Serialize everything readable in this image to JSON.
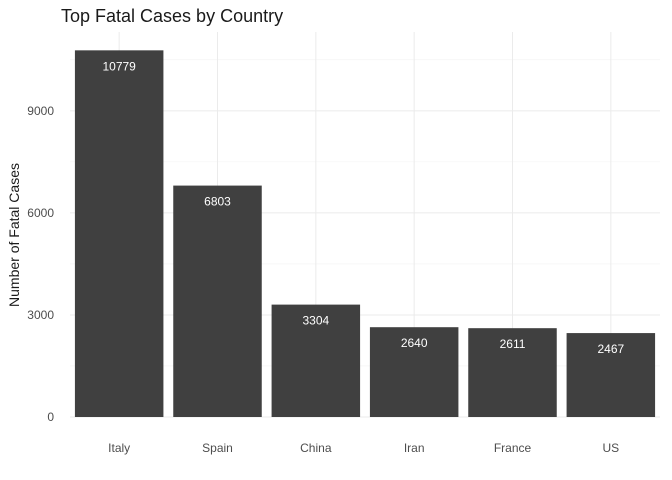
{
  "chart_data": {
    "type": "bar",
    "title": "Top Fatal Cases by Country",
    "xlabel": "",
    "ylabel": "Number of Fatal Cases",
    "categories": [
      "Italy",
      "Spain",
      "China",
      "Iran",
      "France",
      "US"
    ],
    "values": [
      10779,
      6803,
      3304,
      2640,
      2611,
      2467
    ],
    "value_labels": [
      "10779",
      "6803",
      "3304",
      "2640",
      "2611",
      "2467"
    ],
    "y_ticks": [
      0,
      3000,
      6000,
      9000
    ],
    "y_tick_labels": [
      "0",
      "3000",
      "6000",
      "9000"
    ],
    "ylim": [
      0,
      11318
    ],
    "grid": true,
    "bar_color": "#404040",
    "label_color": "#ffffff"
  }
}
